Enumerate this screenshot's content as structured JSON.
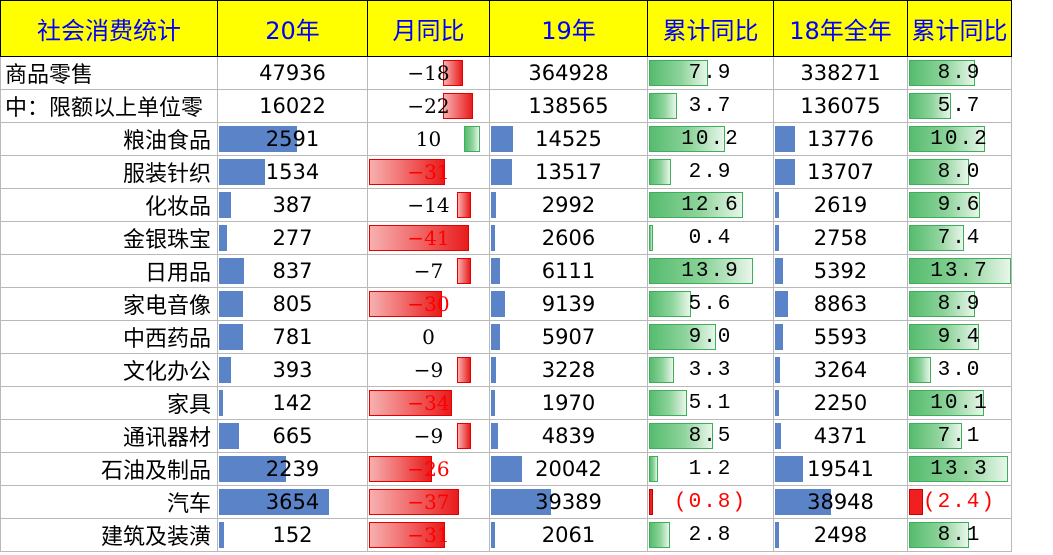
{
  "header": [
    "社会消费统计",
    "20年",
    "月同比",
    "19年",
    "累计同比",
    "18年全年",
    "累计同比"
  ],
  "rows": [
    {
      "label": "商品零售",
      "y20": "47936",
      "mom": "−18",
      "y19": "364928",
      "cum19": "7.9",
      "y18": "338271",
      "cum18": "8.9",
      "left": true
    },
    {
      "label": "中：限额以上单位零",
      "y20": "16022",
      "mom": "−22",
      "y19": "138565",
      "cum19": "3.7",
      "y18": "136075",
      "cum18": "5.7",
      "left": true
    },
    {
      "label": "粮油食品",
      "y20": "2591",
      "mom": "10",
      "y19": "14525",
      "cum19": "10.2",
      "y18": "13776",
      "cum18": "10.2"
    },
    {
      "label": "服装针织",
      "y20": "1534",
      "mom": "−31",
      "y19": "13517",
      "cum19": "2.9",
      "y18": "13707",
      "cum18": "8.0"
    },
    {
      "label": "化妆品",
      "y20": "387",
      "mom": "−14",
      "y19": "2992",
      "cum19": "12.6",
      "y18": "2619",
      "cum18": "9.6"
    },
    {
      "label": "金银珠宝",
      "y20": "277",
      "mom": "−41",
      "y19": "2606",
      "cum19": "0.4",
      "y18": "2758",
      "cum18": "7.4"
    },
    {
      "label": "日用品",
      "y20": "837",
      "mom": "−7",
      "y19": "6111",
      "cum19": "13.9",
      "y18": "5392",
      "cum18": "13.7"
    },
    {
      "label": "家电音像",
      "y20": "805",
      "mom": "−30",
      "y19": "9139",
      "cum19": "5.6",
      "y18": "8863",
      "cum18": "8.9"
    },
    {
      "label": "中西药品",
      "y20": "781",
      "mom": "0",
      "y19": "5907",
      "cum19": "9.0",
      "y18": "5593",
      "cum18": "9.4"
    },
    {
      "label": "文化办公",
      "y20": "393",
      "mom": "−9",
      "y19": "3228",
      "cum19": "3.3",
      "y18": "3264",
      "cum18": "3.0"
    },
    {
      "label": "家具",
      "y20": "142",
      "mom": "−34",
      "y19": "1970",
      "cum19": "5.1",
      "y18": "2250",
      "cum18": "10.1"
    },
    {
      "label": "通讯器材",
      "y20": "665",
      "mom": "−9",
      "y19": "4839",
      "cum19": "8.5",
      "y18": "4371",
      "cum18": "7.1"
    },
    {
      "label": "石油及制品",
      "y20": "2239",
      "mom": "−26",
      "y19": "20042",
      "cum19": "1.2",
      "y18": "19541",
      "cum18": "13.3"
    },
    {
      "label": "汽车",
      "y20": "3654",
      "mom": "−37",
      "y19": "39389",
      "cum19": "(0.8)",
      "y18": "38948",
      "cum18": "(2.4)"
    },
    {
      "label": "建筑及装潢",
      "y20": "152",
      "mom": "−31",
      "y19": "2061",
      "cum19": "2.8",
      "y18": "2498",
      "cum18": "8.1"
    }
  ],
  "colors": {
    "header_bg": "#ffff00",
    "header_text": "#0000ff",
    "bar_blue": "#5b84c8",
    "bar_red": "#e81c1c",
    "bar_green": "#56bc6e",
    "negative_text": "#ff0000"
  }
}
